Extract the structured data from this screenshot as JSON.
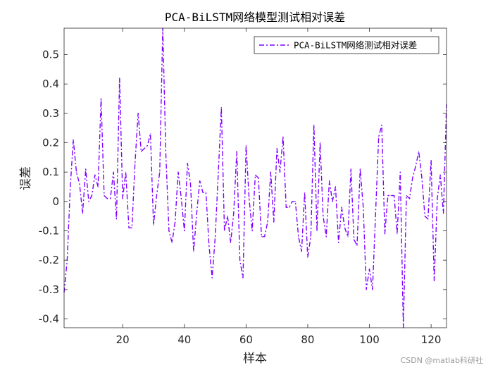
{
  "chart_data": {
    "type": "line",
    "title": "PCA-BiLSTM网络模型测试相对误差",
    "xlabel": "样本",
    "ylabel": "误差",
    "xlim": [
      1,
      125
    ],
    "ylim": [
      -0.43,
      0.59
    ],
    "xticks": [
      20,
      40,
      60,
      80,
      100,
      120
    ],
    "xtick_labels": [
      "20",
      "40",
      "60",
      "80",
      "100",
      "120"
    ],
    "yticks": [
      -0.4,
      -0.3,
      -0.2,
      -0.1,
      0,
      0.1,
      0.2,
      0.3,
      0.4,
      0.5
    ],
    "ytick_labels": [
      "-0.4",
      "-0.3",
      "-0.2",
      "-0.1",
      "0",
      "0.1",
      "0.2",
      "0.3",
      "0.4",
      "0.5"
    ],
    "grid": false,
    "legend_position": "top-right",
    "line_style": "dash-dot",
    "series": [
      {
        "name": "PCA-BiLSTM网络测试相对误差",
        "color": "#8000FF",
        "x": [
          1,
          2,
          3,
          4,
          5,
          6,
          7,
          8,
          9,
          10,
          11,
          12,
          13,
          14,
          15,
          16,
          17,
          18,
          19,
          20,
          21,
          22,
          23,
          24,
          25,
          26,
          27,
          28,
          29,
          30,
          31,
          32,
          33,
          34,
          35,
          36,
          37,
          38,
          39,
          40,
          41,
          42,
          43,
          44,
          45,
          46,
          47,
          48,
          49,
          50,
          51,
          52,
          53,
          54,
          55,
          56,
          57,
          58,
          59,
          60,
          61,
          62,
          63,
          64,
          65,
          66,
          67,
          68,
          69,
          70,
          71,
          72,
          73,
          74,
          75,
          76,
          77,
          78,
          79,
          80,
          81,
          82,
          83,
          84,
          85,
          86,
          87,
          88,
          89,
          90,
          91,
          92,
          93,
          94,
          95,
          96,
          97,
          98,
          99,
          100,
          101,
          102,
          103,
          104,
          105,
          106,
          107,
          108,
          109,
          110,
          111,
          112,
          113,
          114,
          115,
          116,
          117,
          118,
          119,
          120,
          121,
          122,
          123,
          124,
          125
        ],
        "y": [
          -0.31,
          -0.2,
          0.05,
          0.21,
          0.1,
          0.06,
          -0.04,
          0.11,
          0,
          0.02,
          0.09,
          0.05,
          0.35,
          0.02,
          0.01,
          0.01,
          0.1,
          -0.06,
          0.42,
          0.01,
          0.1,
          -0.09,
          -0.09,
          0.13,
          0.3,
          0.17,
          0.18,
          0.19,
          0.23,
          -0.08,
          0.02,
          0.1,
          0.59,
          0.16,
          -0.1,
          -0.14,
          -0.07,
          0.1,
          0.01,
          -0.1,
          0.13,
          0.06,
          -0.17,
          -0.04,
          0.07,
          0.03,
          0.03,
          -0.15,
          -0.26,
          -0.12,
          0.1,
          0.32,
          -0.1,
          -0.05,
          -0.14,
          -0.04,
          0.17,
          -0.2,
          -0.26,
          0.19,
          0.01,
          -0.1,
          0.09,
          0.08,
          -0.12,
          -0.12,
          -0.07,
          0.1,
          -0.07,
          0.18,
          0.1,
          0.22,
          -0.02,
          -0.02,
          0,
          0,
          -0.12,
          -0.17,
          0.03,
          -0.19,
          -0.12,
          0.26,
          -0.1,
          0.2,
          -0.05,
          -0.12,
          0.07,
          0,
          0.05,
          -0.14,
          -0.02,
          -0.09,
          -0.12,
          0.11,
          -0.13,
          -0.15,
          0.11,
          -0.02,
          -0.3,
          -0.23,
          -0.3,
          -0.04,
          0.22,
          0.26,
          -0.11,
          0.02,
          0.02,
          0.02,
          -0.11,
          0.1,
          -0.43,
          0.02,
          0.01,
          0.08,
          0.12,
          0.17,
          0.08,
          -0.05,
          -0.06,
          0.14,
          -0.27,
          0.01,
          0.09,
          -0.04,
          0.33
        ]
      }
    ]
  },
  "watermark": "CSDN @matlab科研社"
}
